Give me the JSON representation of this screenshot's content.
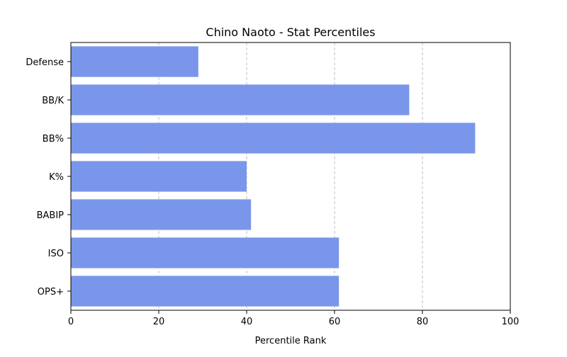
{
  "chart_data": {
    "type": "bar",
    "orientation": "horizontal",
    "title": "Chino Naoto - Stat Percentiles",
    "xlabel": "Percentile Rank",
    "ylabel": "",
    "categories": [
      "OPS+",
      "ISO",
      "BABIP",
      "K%",
      "BB%",
      "BB/K",
      "Defense"
    ],
    "values": [
      61,
      61,
      41,
      40,
      92,
      77,
      29
    ],
    "xlim": [
      0,
      100
    ],
    "xticks": [
      "0",
      "20",
      "40",
      "60",
      "80",
      "100"
    ],
    "grid": "x-dashed",
    "bar_color": "#7996EA"
  }
}
